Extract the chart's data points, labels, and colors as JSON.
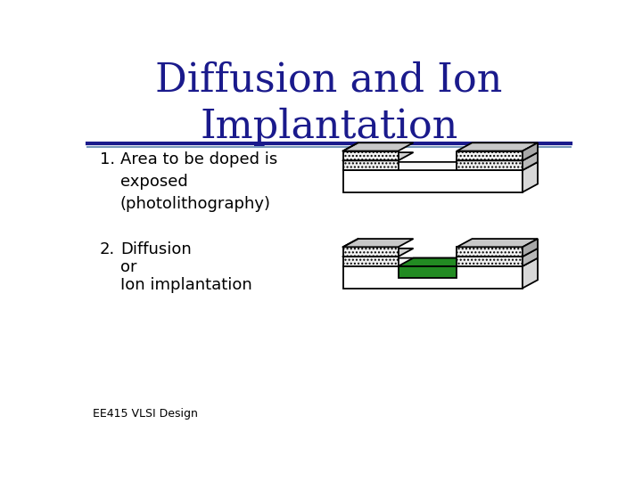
{
  "title_line1": "Diffusion and Ion",
  "title_line2": "Implantation",
  "title_color": "#1a1a8c",
  "title_fontsize": 32,
  "background_color": "#ffffff",
  "separator_color_top": "#1a1a8c",
  "separator_color_bottom": "#7799bb",
  "item1_number": "1.",
  "item1_text": "Area to be doped is\nexposed\n(photolithography)",
  "item2_number": "2.",
  "item2_text_line1": "Diffusion",
  "item2_text_line2": "or",
  "item2_text_line3": "Ion implantation",
  "text_fontsize": 13,
  "footer_text": "EE415 VLSI Design",
  "footer_fontsize": 9,
  "green_color": "#228B22",
  "line_color": "#000000",
  "hatch_pattern": "....",
  "oxide_face_color": "#f0f0f0",
  "oxide_top_color": "#d0d0d0",
  "pr_face_color": "#f0f0f0",
  "pr_top_color": "#c8c8c8",
  "sub_right_color": "#d8d8d8",
  "sub_top_color": "#f8f8f8"
}
